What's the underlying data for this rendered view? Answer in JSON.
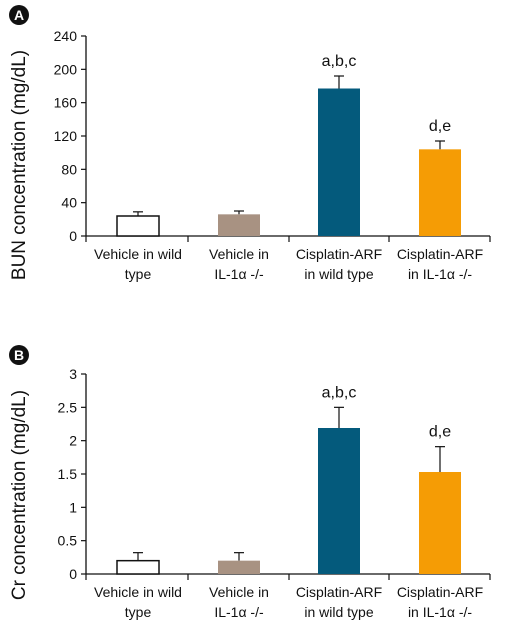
{
  "panels": [
    {
      "label": "A",
      "chart_data": {
        "type": "bar",
        "ylabel": "BUN concentration (mg/dL)",
        "ylim": [
          0,
          240
        ],
        "yticks": [
          "0",
          "40",
          "80",
          "120",
          "160",
          "200",
          "240"
        ],
        "categories": [
          [
            "Vehicle in wild",
            "type"
          ],
          [
            "Vehicle in",
            "IL-1α -/-"
          ],
          [
            "Cisplatin-ARF",
            "in wild type"
          ],
          [
            "Cisplatin-ARF",
            "in IL-1α -/-"
          ]
        ],
        "values": [
          24,
          26,
          177,
          104
        ],
        "errors": [
          5,
          4,
          15,
          10
        ],
        "colors": [
          "#ffffff",
          "#a89282",
          "#045a7c",
          "#f59c05"
        ],
        "annotations": [
          "",
          "",
          "a,b,c",
          "d,e"
        ]
      }
    },
    {
      "label": "B",
      "chart_data": {
        "type": "bar",
        "ylabel": "Cr concentration (mg/dL)",
        "ylim": [
          0,
          3
        ],
        "yticks": [
          "0",
          "0.5",
          "1",
          "1.5",
          "2",
          "2.5",
          "3"
        ],
        "categories": [
          [
            "Vehicle in wild",
            "type"
          ],
          [
            "Vehicle in",
            "IL-1α -/-"
          ],
          [
            "Cisplatin-ARF",
            "in wild type"
          ],
          [
            "Cisplatin-ARF",
            "in IL-1α -/-"
          ]
        ],
        "values": [
          0.2,
          0.2,
          2.19,
          1.53
        ],
        "errors": [
          0.12,
          0.12,
          0.31,
          0.38
        ],
        "colors": [
          "#ffffff",
          "#a89282",
          "#045a7c",
          "#f59c05"
        ],
        "annotations": [
          "",
          "",
          "a,b,c",
          "d,e"
        ]
      }
    }
  ]
}
